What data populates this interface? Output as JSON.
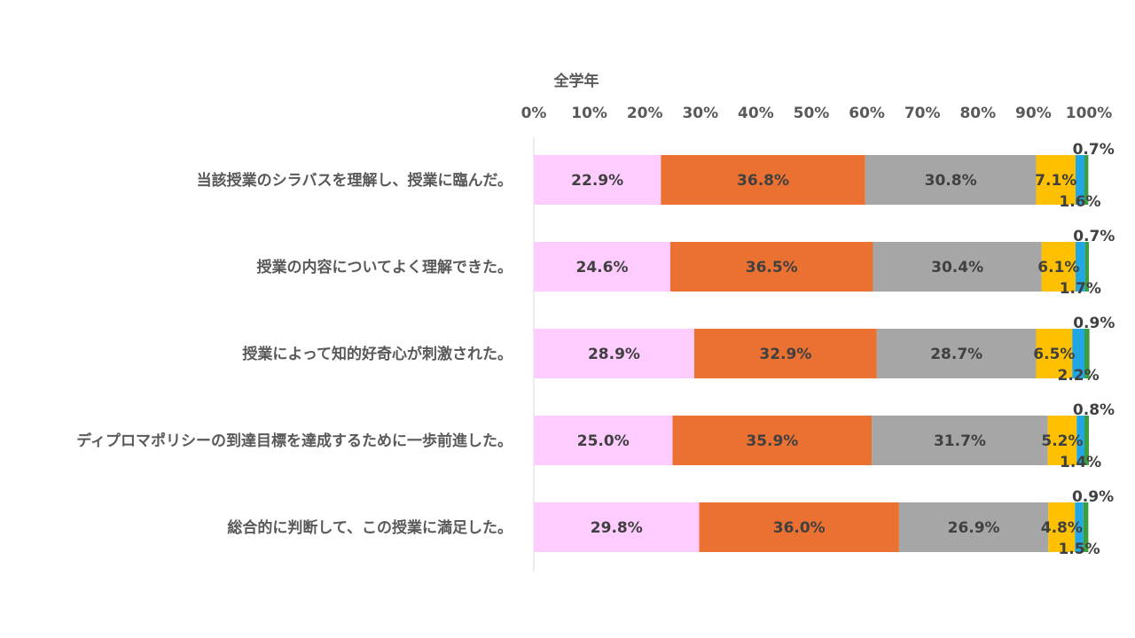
{
  "chart_data": {
    "type": "bar",
    "orientation": "horizontal",
    "stacked": "percent",
    "title": "全学年",
    "x_ticks": [
      "0%",
      "10%",
      "20%",
      "30%",
      "40%",
      "50%",
      "60%",
      "70%",
      "80%",
      "90%",
      "100%"
    ],
    "xlim": [
      0,
      100
    ],
    "grid": false,
    "legend": "none",
    "categories": [
      "当該授業のシラバスを理解し、授業に臨んだ。",
      "授業の内容についてよく理解できた。",
      "授業によって知的好奇心が刺激された。",
      "ディプロマポリシーの到達目標を達成するために一歩前進した。",
      "総合的に判断して、この授業に満足した。"
    ],
    "series": [
      {
        "color": "#FFCCFF",
        "values": [
          22.9,
          24.6,
          28.9,
          25.0,
          29.8
        ],
        "labels": [
          "22.9%",
          "24.6%",
          "28.9%",
          "25.0%",
          "29.8%"
        ]
      },
      {
        "color": "#EB7132",
        "values": [
          36.8,
          36.5,
          32.9,
          35.9,
          36.0
        ],
        "labels": [
          "36.8%",
          "36.5%",
          "32.9%",
          "35.9%",
          "36.0%"
        ]
      },
      {
        "color": "#A6A6A6",
        "values": [
          30.8,
          30.4,
          28.7,
          31.7,
          26.9
        ],
        "labels": [
          "30.8%",
          "30.4%",
          "28.7%",
          "31.7%",
          "26.9%"
        ]
      },
      {
        "color": "#FFC000",
        "values": [
          7.1,
          6.1,
          6.5,
          5.2,
          4.8
        ],
        "labels": [
          "7.1%",
          "6.1%",
          "6.5%",
          "5.2%",
          "4.8%"
        ]
      },
      {
        "color": "#21A7E6",
        "values": [
          1.6,
          1.7,
          2.2,
          1.4,
          1.5
        ],
        "labels": [
          "1.6%",
          "1.7%",
          "2.2%",
          "1.4%",
          "1.5%"
        ]
      },
      {
        "color": "#3D9E3D",
        "values": [
          0.7,
          0.7,
          0.9,
          0.8,
          0.9
        ],
        "labels": [
          "0.7%",
          "0.7%",
          "0.9%",
          "0.8%",
          "0.9%"
        ]
      }
    ]
  }
}
